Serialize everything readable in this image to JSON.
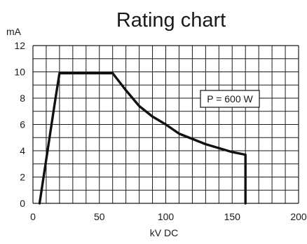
{
  "chart_data": {
    "type": "line",
    "title": "Rating chart",
    "xlabel": "kV DC",
    "ylabel": "mA",
    "xlim": [
      0,
      200
    ],
    "ylim": [
      0,
      12
    ],
    "grid": true,
    "x_ticks": [
      0,
      50,
      100,
      150,
      200
    ],
    "y_ticks": [
      0,
      2,
      4,
      6,
      8,
      10,
      12
    ],
    "series": [
      {
        "x": [
          5,
          17,
          20,
          60,
          70,
          80,
          90,
          100,
          110,
          120,
          130,
          140,
          150,
          160,
          160
        ],
        "y": [
          0,
          8.0,
          9.9,
          9.9,
          8.6,
          7.4,
          6.6,
          6.0,
          5.3,
          4.9,
          4.5,
          4.2,
          3.9,
          3.7,
          0
        ]
      }
    ],
    "annotations": [
      {
        "text": "P = 600 W"
      }
    ],
    "colors": {
      "line": "#111111",
      "grid": "#1a1a1a",
      "text": "#1a1a1a"
    }
  }
}
